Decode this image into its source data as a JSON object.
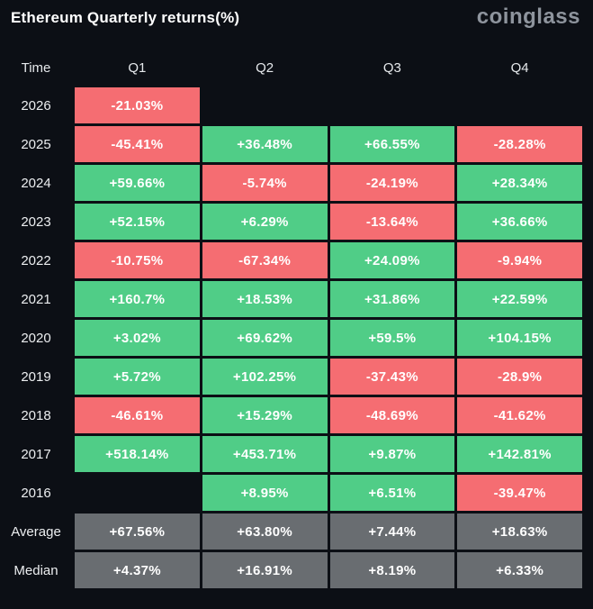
{
  "ui": {
    "title": "Ethereum Quarterly returns(%)",
    "logo_text": "coinglass"
  },
  "colors": {
    "background": "#0c0f15",
    "positive": "#50cd87",
    "negative": "#f56d72",
    "summary": "#696d71",
    "title_text": "#ffffff",
    "logo_text": "#8e949d",
    "header_text": "#e6e9ec",
    "cell_text": "#ffffff"
  },
  "chart_data": {
    "type": "table",
    "title": "Ethereum Quarterly returns(%)",
    "columns": [
      "Time",
      "Q1",
      "Q2",
      "Q3",
      "Q4"
    ],
    "legend": {
      "positive_color": "#50cd87",
      "negative_color": "#f56d72",
      "summary_color": "#696d71"
    },
    "rows": [
      {
        "label": "2026",
        "cells": [
          {
            "text": "-21.03%",
            "value": -21.03,
            "kind": "neg"
          },
          null,
          null,
          null
        ]
      },
      {
        "label": "2025",
        "cells": [
          {
            "text": "-45.41%",
            "value": -45.41,
            "kind": "neg"
          },
          {
            "text": "+36.48%",
            "value": 36.48,
            "kind": "pos"
          },
          {
            "text": "+66.55%",
            "value": 66.55,
            "kind": "pos"
          },
          {
            "text": "-28.28%",
            "value": -28.28,
            "kind": "neg"
          }
        ]
      },
      {
        "label": "2024",
        "cells": [
          {
            "text": "+59.66%",
            "value": 59.66,
            "kind": "pos"
          },
          {
            "text": "-5.74%",
            "value": -5.74,
            "kind": "neg"
          },
          {
            "text": "-24.19%",
            "value": -24.19,
            "kind": "neg"
          },
          {
            "text": "+28.34%",
            "value": 28.34,
            "kind": "pos"
          }
        ]
      },
      {
        "label": "2023",
        "cells": [
          {
            "text": "+52.15%",
            "value": 52.15,
            "kind": "pos"
          },
          {
            "text": "+6.29%",
            "value": 6.29,
            "kind": "pos"
          },
          {
            "text": "-13.64%",
            "value": -13.64,
            "kind": "neg"
          },
          {
            "text": "+36.66%",
            "value": 36.66,
            "kind": "pos"
          }
        ]
      },
      {
        "label": "2022",
        "cells": [
          {
            "text": "-10.75%",
            "value": -10.75,
            "kind": "neg"
          },
          {
            "text": "-67.34%",
            "value": -67.34,
            "kind": "neg"
          },
          {
            "text": "+24.09%",
            "value": 24.09,
            "kind": "pos"
          },
          {
            "text": "-9.94%",
            "value": -9.94,
            "kind": "neg"
          }
        ]
      },
      {
        "label": "2021",
        "cells": [
          {
            "text": "+160.7%",
            "value": 160.7,
            "kind": "pos"
          },
          {
            "text": "+18.53%",
            "value": 18.53,
            "kind": "pos"
          },
          {
            "text": "+31.86%",
            "value": 31.86,
            "kind": "pos"
          },
          {
            "text": "+22.59%",
            "value": 22.59,
            "kind": "pos"
          }
        ]
      },
      {
        "label": "2020",
        "cells": [
          {
            "text": "+3.02%",
            "value": 3.02,
            "kind": "pos"
          },
          {
            "text": "+69.62%",
            "value": 69.62,
            "kind": "pos"
          },
          {
            "text": "+59.5%",
            "value": 59.5,
            "kind": "pos"
          },
          {
            "text": "+104.15%",
            "value": 104.15,
            "kind": "pos"
          }
        ]
      },
      {
        "label": "2019",
        "cells": [
          {
            "text": "+5.72%",
            "value": 5.72,
            "kind": "pos"
          },
          {
            "text": "+102.25%",
            "value": 102.25,
            "kind": "pos"
          },
          {
            "text": "-37.43%",
            "value": -37.43,
            "kind": "neg"
          },
          {
            "text": "-28.9%",
            "value": -28.9,
            "kind": "neg"
          }
        ]
      },
      {
        "label": "2018",
        "cells": [
          {
            "text": "-46.61%",
            "value": -46.61,
            "kind": "neg"
          },
          {
            "text": "+15.29%",
            "value": 15.29,
            "kind": "pos"
          },
          {
            "text": "-48.69%",
            "value": -48.69,
            "kind": "neg"
          },
          {
            "text": "-41.62%",
            "value": -41.62,
            "kind": "neg"
          }
        ]
      },
      {
        "label": "2017",
        "cells": [
          {
            "text": "+518.14%",
            "value": 518.14,
            "kind": "pos"
          },
          {
            "text": "+453.71%",
            "value": 453.71,
            "kind": "pos"
          },
          {
            "text": "+9.87%",
            "value": 9.87,
            "kind": "pos"
          },
          {
            "text": "+142.81%",
            "value": 142.81,
            "kind": "pos"
          }
        ]
      },
      {
        "label": "2016",
        "cells": [
          null,
          {
            "text": "+8.95%",
            "value": 8.95,
            "kind": "pos"
          },
          {
            "text": "+6.51%",
            "value": 6.51,
            "kind": "pos"
          },
          {
            "text": "-39.47%",
            "value": -39.47,
            "kind": "neg"
          }
        ]
      },
      {
        "label": "Average",
        "cells": [
          {
            "text": "+67.56%",
            "value": 67.56,
            "kind": "sum"
          },
          {
            "text": "+63.80%",
            "value": 63.8,
            "kind": "sum"
          },
          {
            "text": "+7.44%",
            "value": 7.44,
            "kind": "sum"
          },
          {
            "text": "+18.63%",
            "value": 18.63,
            "kind": "sum"
          }
        ]
      },
      {
        "label": "Median",
        "cells": [
          {
            "text": "+4.37%",
            "value": 4.37,
            "kind": "sum"
          },
          {
            "text": "+16.91%",
            "value": 16.91,
            "kind": "sum"
          },
          {
            "text": "+8.19%",
            "value": 8.19,
            "kind": "sum"
          },
          {
            "text": "+6.33%",
            "value": 6.33,
            "kind": "sum"
          }
        ]
      }
    ]
  }
}
